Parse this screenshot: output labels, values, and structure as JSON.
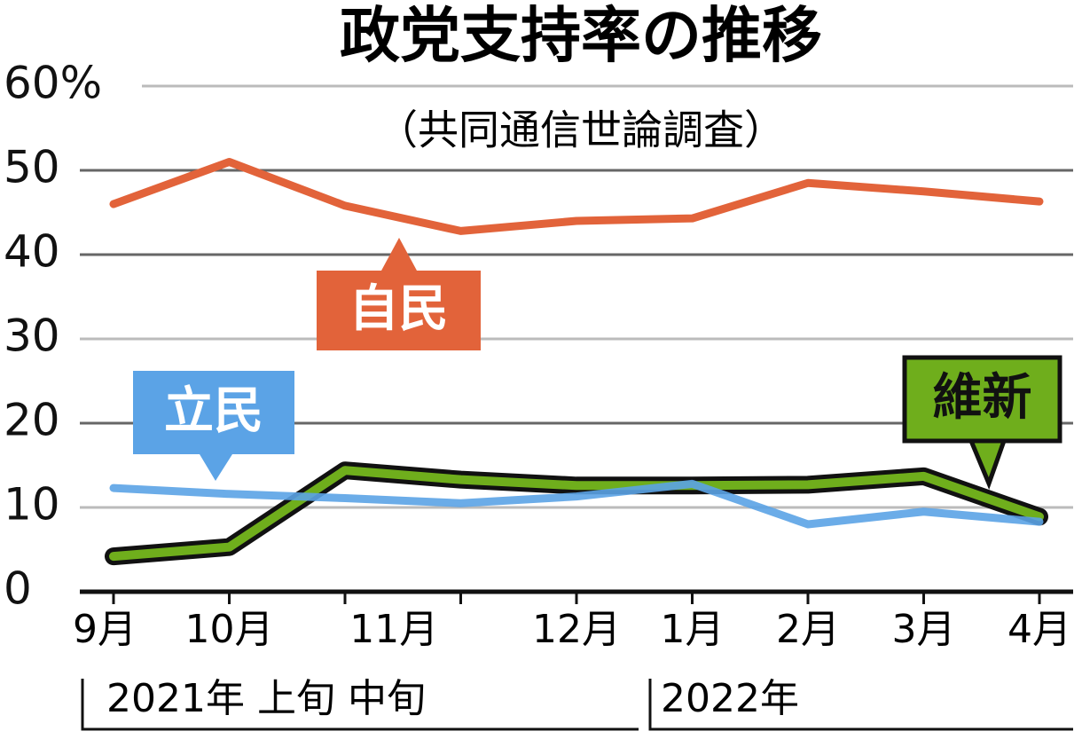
{
  "chart_data": {
    "type": "line",
    "title": "政党支持率の推移",
    "subtitle": "（共同通信世論調査）",
    "categories": [
      "9月",
      "10月",
      null,
      null,
      "12月",
      "1月",
      "2月",
      "3月",
      "4月"
    ],
    "category_groups": [
      {
        "label": "11月",
        "from": 2,
        "to": 3
      }
    ],
    "period_labels": [
      "2021年 上旬 中旬",
      "2022年"
    ],
    "ylim": [
      0,
      60
    ],
    "yticks": [
      0,
      10,
      20,
      30,
      40,
      {
        "value": 60,
        "label": "60%"
      },
      50
    ],
    "grid": true,
    "series": [
      {
        "name": "自民",
        "color": "#e2633a",
        "values": [
          46.0,
          51.0,
          45.8,
          42.8,
          44.0,
          44.3,
          48.5,
          47.5,
          46.3
        ]
      },
      {
        "name": "立民",
        "color": "#5ba3e6",
        "values": [
          12.3,
          11.6,
          11.1,
          10.5,
          11.3,
          12.8,
          8.0,
          9.5,
          8.3
        ]
      },
      {
        "name": "維新",
        "color": "#6fae1c",
        "values": [
          4.2,
          5.3,
          14.4,
          13.3,
          12.6,
          12.6,
          12.7,
          13.7,
          8.9
        ]
      }
    ]
  }
}
